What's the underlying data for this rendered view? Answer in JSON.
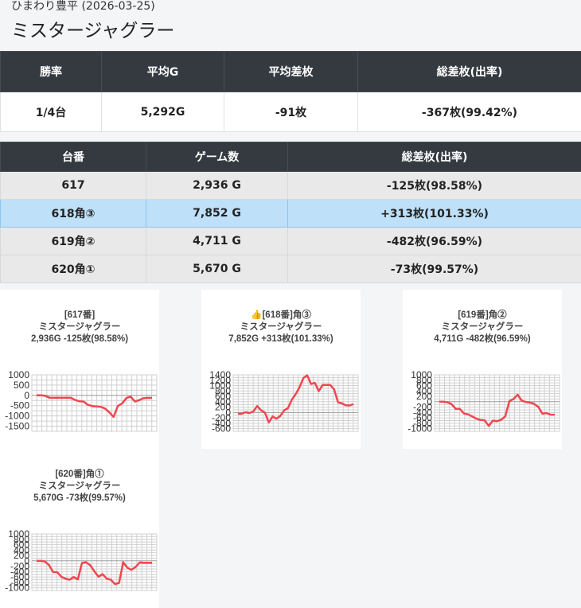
{
  "header": {
    "store_date": "ひまわり豊平 (2026-03-25)",
    "title": "ミスタージャグラー"
  },
  "summary": {
    "headers": [
      "勝率",
      "平均G",
      "平均差枚",
      "総差枚(出率)"
    ],
    "values": [
      "1/4台",
      "5,292G",
      "-91枚",
      "-367枚(99.42%)"
    ]
  },
  "machines": {
    "headers": [
      "台番",
      "ゲーム数",
      "総差枚(出率)"
    ],
    "rows": [
      {
        "number": "617",
        "games": "2,936 G",
        "diff": "-125枚(98.58%)",
        "highlight": false
      },
      {
        "number": "618角③",
        "games": "7,852 G",
        "diff": "+313枚(101.33%)",
        "highlight": true
      },
      {
        "number": "619角②",
        "games": "4,711 G",
        "diff": "-482枚(96.59%)",
        "highlight": false
      },
      {
        "number": "620角①",
        "games": "5,670 G",
        "diff": "-73枚(99.57%)",
        "highlight": false
      }
    ]
  },
  "colors": {
    "line": "#f04650",
    "header_bg": "#343a40",
    "highlight_bg": "#bee0f8"
  },
  "chart_data": [
    {
      "type": "line",
      "title_lines": [
        "[617番]",
        "ミスタージャグラー",
        "2,936G -125枚(98.58%)"
      ],
      "ylim": [
        -1750,
        1000
      ],
      "y_ticks": [
        1000,
        500,
        0,
        -500,
        -1000,
        -1500
      ],
      "y_tick_labels": [
        "1000",
        "500",
        "0",
        "-500",
        "-1000",
        "-1500"
      ],
      "grid": true,
      "values": [
        0,
        0,
        -20,
        -110,
        -120,
        -110,
        -120,
        -110,
        -120,
        -220,
        -290,
        -300,
        -460,
        -520,
        -540,
        -560,
        -640,
        -820,
        -1050,
        -520,
        -400,
        -130,
        -60,
        -300,
        -230,
        -140,
        -120,
        -125
      ]
    },
    {
      "type": "line",
      "title_lines": [
        "👍[618番]角③",
        "ミスタージャグラー",
        "7,852G +313枚(101.33%)"
      ],
      "ylim": [
        -700,
        1400
      ],
      "y_ticks": [
        1400,
        1200,
        1000,
        800,
        600,
        400,
        200,
        0,
        -200,
        -400,
        -600
      ],
      "y_tick_labels": [
        "1400",
        "1200",
        "1000",
        "800",
        "600",
        "400",
        "200",
        "0",
        "-200",
        "-400",
        "-600"
      ],
      "grid": true,
      "values": [
        -50,
        -40,
        10,
        -20,
        40,
        240,
        80,
        0,
        -370,
        -150,
        -230,
        -130,
        80,
        160,
        480,
        680,
        940,
        1280,
        1380,
        1060,
        1100,
        790,
        1020,
        1020,
        1020,
        860,
        380,
        340,
        270,
        260,
        313
      ]
    },
    {
      "type": "line",
      "title_lines": [
        "[619番]角②",
        "ミスタージャグラー",
        "4,711G -482枚(96.59%)"
      ],
      "ylim": [
        -1100,
        1000
      ],
      "y_ticks": [
        1000,
        800,
        600,
        400,
        200,
        0,
        -200,
        -400,
        -600,
        -800,
        -1000
      ],
      "y_tick_labels": [
        "1000",
        "800",
        "600",
        "400",
        "200",
        "0",
        "-200",
        "-400",
        "-600",
        "-800",
        "-1000"
      ],
      "grid": true,
      "values": [
        0,
        0,
        -20,
        -90,
        -270,
        -270,
        -440,
        -470,
        -550,
        -630,
        -680,
        -690,
        -900,
        -700,
        -720,
        -670,
        -540,
        20,
        100,
        260,
        40,
        -10,
        -30,
        -80,
        -190,
        -440,
        -420,
        -480,
        -482
      ]
    },
    {
      "type": "line",
      "title_lines": [
        "[620番]角①",
        "ミスタージャグラー",
        "5,670G -73枚(99.57%)"
      ],
      "ylim": [
        -1100,
        1000
      ],
      "y_ticks": [
        1000,
        800,
        600,
        400,
        200,
        0,
        -200,
        -400,
        -600,
        -800,
        -1000
      ],
      "y_tick_labels": [
        "1000",
        "800",
        "600",
        "400",
        "200",
        "0",
        "-200",
        "-400",
        "-600",
        "-800",
        "-1000"
      ],
      "grid": true,
      "values": [
        0,
        0,
        -20,
        -150,
        -410,
        -420,
        -590,
        -660,
        -700,
        -600,
        -690,
        -80,
        -50,
        -160,
        -380,
        -590,
        -490,
        -660,
        -700,
        -860,
        -820,
        -50,
        -250,
        -330,
        -230,
        -60,
        -70,
        -73,
        -73
      ]
    }
  ]
}
